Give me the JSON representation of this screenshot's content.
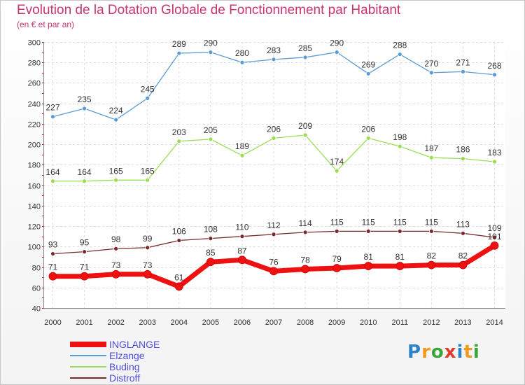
{
  "title": "Evolution de la Dotation Globale de Fonctionnement par Habitant",
  "subtitle": "(en € et par an)",
  "chart_data": {
    "type": "line",
    "title": "Evolution de la Dotation Globale de Fonctionnement par Habitant",
    "subtitle": "(en € et par an)",
    "xlabel": "",
    "ylabel": "",
    "ylim": [
      40,
      300
    ],
    "yticks": [
      40,
      60,
      80,
      100,
      120,
      140,
      160,
      180,
      200,
      220,
      240,
      260,
      280,
      300
    ],
    "grid": true,
    "legend_position": "bottom-left",
    "x": [
      "2000",
      "2001",
      "2002",
      "2003",
      "2004",
      "2005",
      "2006",
      "2007",
      "2008",
      "2009",
      "2010",
      "2011",
      "2012",
      "2013",
      "2014"
    ],
    "series": [
      {
        "name": "INGLANGE",
        "color": "#ee1111",
        "values": [
          71,
          71,
          73,
          73,
          61,
          85,
          87,
          76,
          78,
          79,
          81,
          81,
          82,
          82,
          101
        ]
      },
      {
        "name": "Elzange",
        "color": "#5b9bd5",
        "values": [
          227,
          235,
          224,
          245,
          289,
          290,
          280,
          283,
          285,
          290,
          269,
          288,
          270,
          271,
          268
        ]
      },
      {
        "name": "Buding",
        "color": "#99dd55",
        "values": [
          164,
          164,
          165,
          165,
          203,
          205,
          189,
          206,
          209,
          174,
          206,
          198,
          187,
          186,
          183
        ]
      },
      {
        "name": "Distroff",
        "color": "#7a2a2a",
        "values": [
          93,
          95,
          98,
          99,
          106,
          108,
          110,
          112,
          114,
          115,
          115,
          115,
          115,
          113,
          109
        ]
      }
    ]
  },
  "legend": {
    "items": [
      {
        "label": "INGLANGE",
        "color": "#ee1111"
      },
      {
        "label": "Elzange",
        "color": "#5b9bd5"
      },
      {
        "label": "Buding",
        "color": "#99dd55"
      },
      {
        "label": "Distroff",
        "color": "#7a2a2a"
      }
    ]
  },
  "logo": {
    "letters": [
      "P",
      "r",
      "o",
      "x",
      "i",
      "t",
      "i"
    ],
    "colors": [
      "#2c84c7",
      "#f29a1e",
      "#3aa53a",
      "#e03c2e",
      "#2c84c7",
      "#f29a1e",
      "#3aa53a"
    ]
  }
}
